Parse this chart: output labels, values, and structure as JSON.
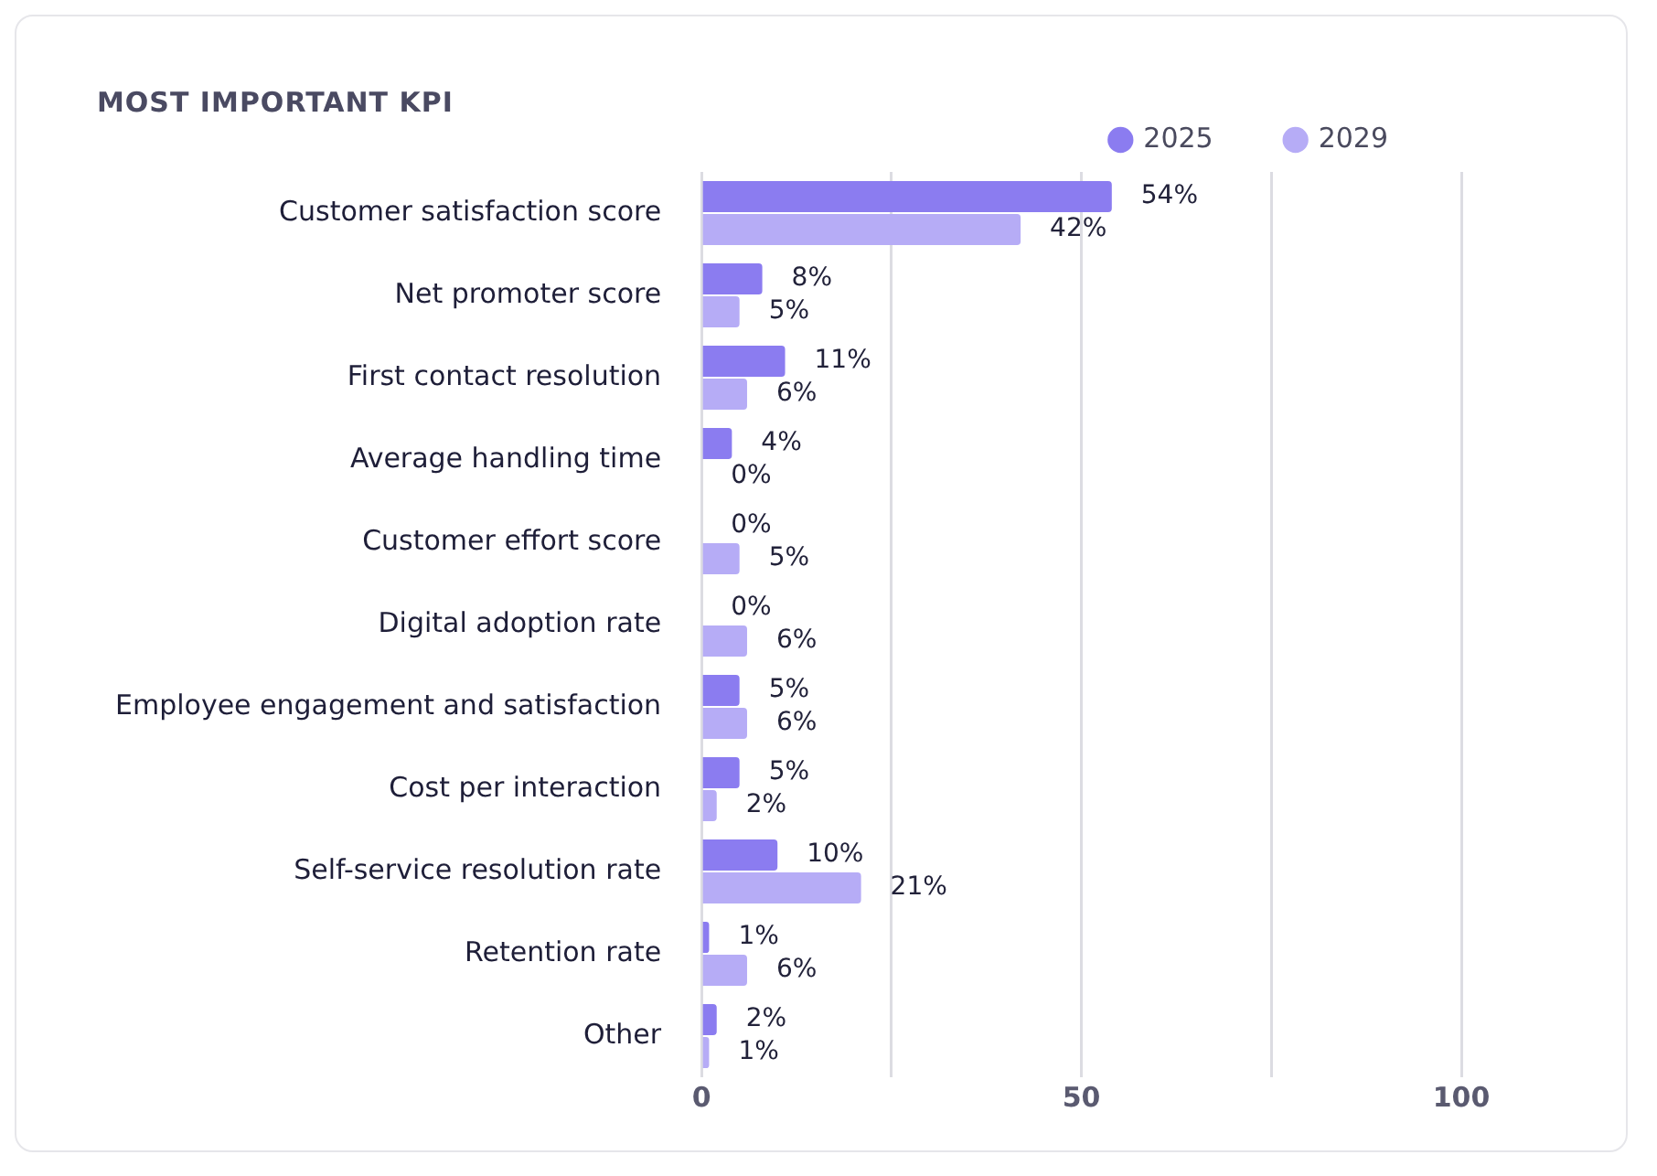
{
  "chart_data": {
    "type": "bar",
    "orientation": "horizontal",
    "title": "MOST IMPORTANT KPI",
    "categories": [
      "Customer satisfaction score",
      "Net promoter score",
      "First contact resolution",
      "Average handling time",
      "Customer effort score",
      "Digital adoption rate",
      "Employee engagement and satisfaction",
      "Cost per interaction",
      "Self-service resolution rate",
      "Retention rate",
      "Other"
    ],
    "series": [
      {
        "name": "2025",
        "color": "#8b7cf0",
        "values": [
          54,
          8,
          11,
          4,
          0,
          0,
          5,
          5,
          10,
          1,
          2
        ],
        "value_labels": [
          "54%",
          "8%",
          "11%",
          "4%",
          "0%",
          "0%",
          "5%",
          "5%",
          "10%",
          "1%",
          "2%"
        ]
      },
      {
        "name": "2029",
        "color": "#b6acf6",
        "values": [
          42,
          5,
          6,
          0,
          5,
          6,
          6,
          2,
          21,
          6,
          1
        ],
        "value_labels": [
          "42%",
          "5%",
          "6%",
          "0%",
          "5%",
          "6%",
          "6%",
          "2%",
          "21%",
          "6%",
          "1%"
        ]
      }
    ],
    "xlim": [
      0,
      100
    ],
    "xticks": [
      0,
      {
        "value": 25,
        "label": null
      },
      50,
      {
        "value": 75,
        "label": null
      },
      100
    ],
    "grid": "x",
    "legend": "top right"
  }
}
